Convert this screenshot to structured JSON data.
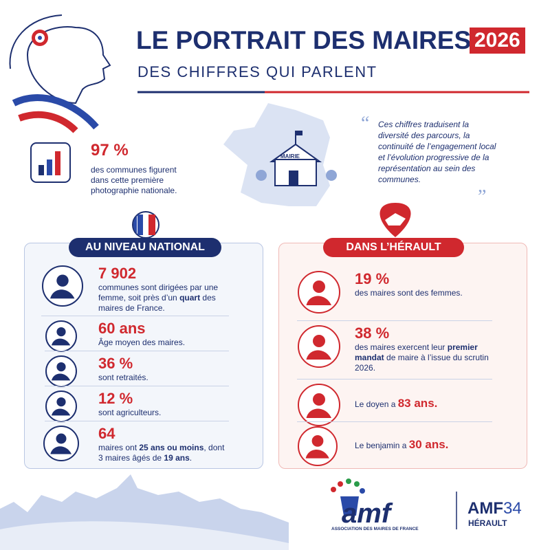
{
  "header": {
    "title": "LE PORTRAIT DES MAIRES",
    "year": "2026",
    "subtitle": "DES CHIFFRES QUI PARLENT"
  },
  "intro": {
    "stat": "97 %",
    "text": "des communes figurent dans cette première photographie nationale."
  },
  "map_label": "MAIRIE",
  "quote": "Ces chiffres traduisent la diversité des parcours, la continuité de l’engagement local et l’évolution progressive de la représentation au sein des communes.",
  "national": {
    "title": "AU NIVEAU NATIONAL",
    "items": [
      {
        "stat": "7 902",
        "text": [
          {
            "text": "communes sont dirigées par une femme, soit près d’un "
          },
          {
            "text": "quart",
            "style": "bold"
          },
          {
            "text": " des maires de France."
          }
        ]
      },
      {
        "stat": "60 ans",
        "text": [
          {
            "text": "Âge moyen des maires."
          }
        ]
      },
      {
        "stat": "36 %",
        "text": [
          {
            "text": "sont retraités."
          }
        ]
      },
      {
        "stat": "12 %",
        "text": [
          {
            "text": "sont agriculteurs."
          }
        ]
      },
      {
        "stat": "64",
        "text": [
          {
            "text": "maires ont "
          },
          {
            "text": "25 ans ou moins",
            "style": "bold"
          },
          {
            "text": ", dont 3 maires âgés de "
          },
          {
            "text": "19 ans",
            "style": "bold"
          },
          {
            "text": "."
          }
        ]
      }
    ]
  },
  "herault": {
    "title": "DANS L’HÉRAULT",
    "items": [
      {
        "stat": "19 %",
        "text": [
          {
            "text": "des maires sont des femmes."
          }
        ]
      },
      {
        "stat": "38 %",
        "text": [
          {
            "text": "des maires exercent leur "
          },
          {
            "text": "premier mandat",
            "style": "bold"
          },
          {
            "text": " de maire à l’issue du scrutin 2026."
          }
        ]
      },
      {
        "text": [
          {
            "text": "Le doyen a "
          },
          {
            "text": "83 ans.",
            "style": "stat"
          }
        ]
      },
      {
        "text": [
          {
            "text": "Le benjamin a "
          },
          {
            "text": "30 ans.",
            "style": "stat"
          }
        ]
      }
    ]
  },
  "footer": {
    "logo": "amf",
    "logo_caption": "ASSOCIATION DES MAIRES DE FRANCE",
    "amf": "AMF",
    "number": "34",
    "department": "HÉRAULT"
  }
}
